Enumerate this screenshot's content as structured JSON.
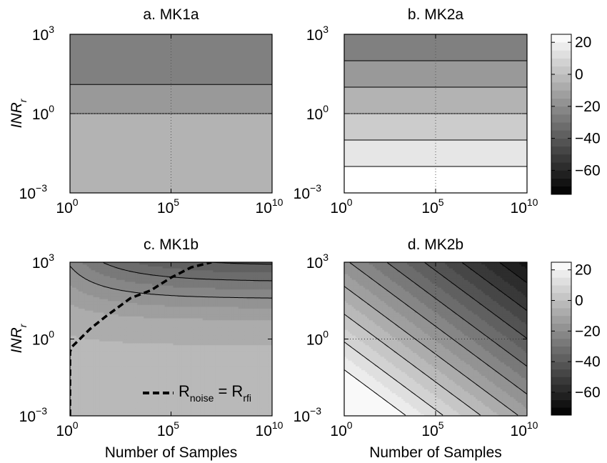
{
  "chart_data": {
    "type": "contour",
    "x_axis": {
      "label": "Number of Samples",
      "scale": "log",
      "range": [
        1,
        10000000000
      ],
      "ticks": [
        {
          "base": "10",
          "exp": "0"
        },
        {
          "base": "10",
          "exp": "5"
        },
        {
          "base": "10",
          "exp": "10"
        }
      ]
    },
    "y_axis": {
      "label_main": "INR",
      "label_sub": "r",
      "scale": "log",
      "range": [
        0.001,
        1000
      ],
      "ticks": [
        {
          "base": "10",
          "exp": "−3"
        },
        {
          "base": "10",
          "exp": "0"
        },
        {
          "base": "10",
          "exp": "3"
        }
      ]
    },
    "colorbar": {
      "range": [
        -75,
        25
      ],
      "levels": [
        -75,
        -70,
        -65,
        -60,
        -55,
        -50,
        -45,
        -40,
        -35,
        -30,
        -25,
        -20,
        -15,
        -10,
        -5,
        0,
        5,
        10,
        15,
        20,
        25
      ],
      "ticks": [
        "20",
        "0",
        "−20",
        "−40",
        "−60"
      ],
      "tick_values": [
        20,
        0,
        -20,
        -40,
        -60
      ],
      "colormap": "gray"
    },
    "panels": [
      {
        "id": "a",
        "title": "a. MK1a",
        "bands_from_bottom": [
          -5,
          -15,
          -25
        ],
        "boundaries_log10_inr": [
          0,
          1.1
        ]
      },
      {
        "id": "b",
        "title": "b. MK2a",
        "bands_from_bottom": [
          25,
          15,
          5,
          -5,
          -15,
          -25
        ],
        "boundaries_log10_inr": [
          -2,
          -1,
          0,
          1,
          2
        ]
      },
      {
        "id": "c",
        "title": "c. MK1b",
        "contour_levels": [
          -20,
          -30,
          -40,
          -50
        ],
        "legend": {
          "label": "R",
          "sub1": "noise",
          "eq": " = R",
          "sub2": "rfi"
        }
      },
      {
        "id": "d",
        "title": "d. MK2b",
        "contour_levels": [
          20,
          10,
          0,
          -10,
          -20,
          -30,
          -40,
          -50,
          -60,
          -70
        ]
      }
    ]
  }
}
